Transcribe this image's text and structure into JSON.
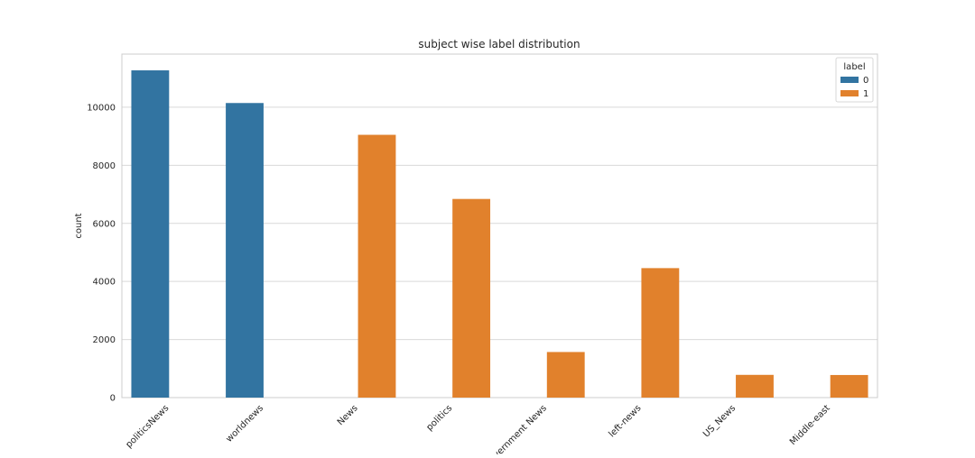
{
  "chart_data": {
    "type": "bar",
    "title": "subject wise label distribution",
    "xlabel": "",
    "ylabel": "count",
    "categories": [
      "politicsNews",
      "worldnews",
      "News",
      "politics",
      "Government News",
      "left-news",
      "US_News",
      "Middle-east"
    ],
    "series": [
      {
        "name": "0",
        "values": [
          11270,
          10145,
          0,
          0,
          0,
          0,
          0,
          0
        ]
      },
      {
        "name": "1",
        "values": [
          0,
          0,
          9050,
          6841,
          1570,
          4459,
          783,
          778
        ]
      }
    ],
    "y_ticks": [
      0,
      2000,
      4000,
      6000,
      8000,
      10000
    ],
    "ylim": [
      0,
      11830
    ],
    "grid": true,
    "legend": {
      "title": "label",
      "placement": "top-right"
    },
    "colors": {
      "0": "#3274a1",
      "1": "#e1812c"
    }
  }
}
